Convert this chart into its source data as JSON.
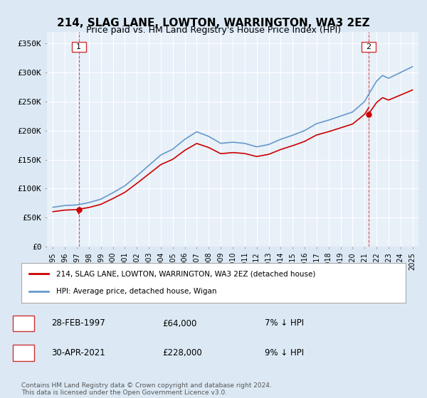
{
  "title": "214, SLAG LANE, LOWTON, WARRINGTON, WA3 2EZ",
  "subtitle": "Price paid vs. HM Land Registry's House Price Index (HPI)",
  "bg_color": "#dce9f5",
  "plot_bg_color": "#e8f0f8",
  "ylim": [
    0,
    370000
  ],
  "xlim_start": 1994.5,
  "xlim_end": 2025.5,
  "yticks": [
    0,
    50000,
    100000,
    150000,
    200000,
    250000,
    300000,
    350000
  ],
  "ytick_labels": [
    "£0",
    "£50K",
    "£100K",
    "£150K",
    "£200K",
    "£250K",
    "£300K",
    "£350K"
  ],
  "xtick_years": [
    1995,
    1996,
    1997,
    1998,
    1999,
    2000,
    2001,
    2002,
    2003,
    2004,
    2005,
    2006,
    2007,
    2008,
    2009,
    2010,
    2011,
    2012,
    2013,
    2014,
    2015,
    2016,
    2017,
    2018,
    2019,
    2020,
    2021,
    2022,
    2023,
    2024,
    2025
  ],
  "transaction1_date": 1997.16,
  "transaction1_price": 64000,
  "transaction1_label": "1",
  "transaction1_display": "28-FEB-1997",
  "transaction1_amount": "£64,000",
  "transaction1_hpi": "7% ↓ HPI",
  "transaction2_date": 2021.33,
  "transaction2_price": 228000,
  "transaction2_label": "2",
  "transaction2_display": "30-APR-2021",
  "transaction2_amount": "£228,000",
  "transaction2_hpi": "9% ↓ HPI",
  "legend_line1": "214, SLAG LANE, LOWTON, WARRINGTON, WA3 2EZ (detached house)",
  "legend_line2": "HPI: Average price, detached house, Wigan",
  "footer": "Contains HM Land Registry data © Crown copyright and database right 2024.\nThis data is licensed under the Open Government Licence v3.0.",
  "line_color_red": "#cc0000",
  "line_color_blue": "#6699cc",
  "grid_color": "#ffffff",
  "marker_box_color": "#cc3333"
}
